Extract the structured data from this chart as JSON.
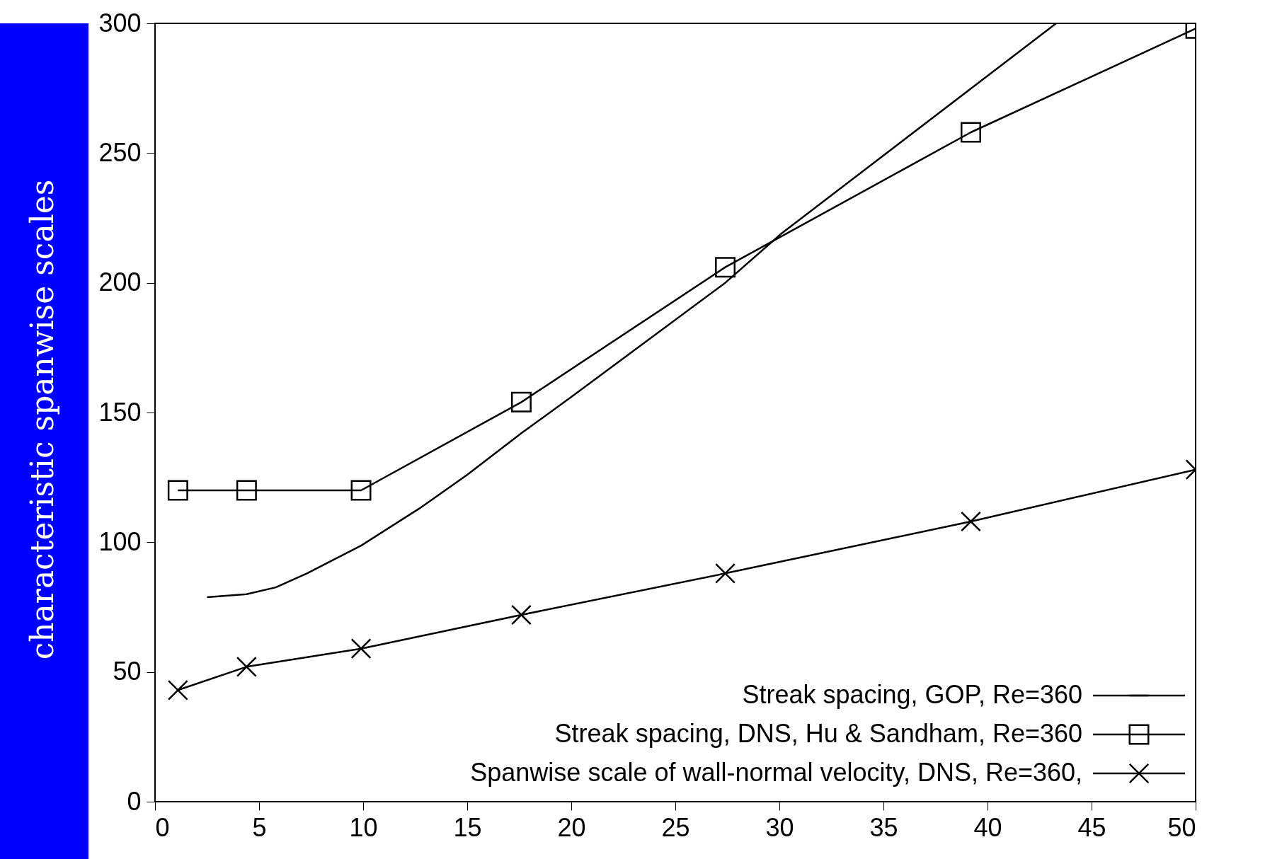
{
  "chart_data": {
    "type": "line",
    "ylabel": "characteristic spanwise scales",
    "xlim": [
      0,
      50
    ],
    "xticks": [
      0,
      5,
      10,
      15,
      20,
      25,
      30,
      35,
      40,
      45,
      50
    ],
    "ylim": [
      0,
      300
    ],
    "yticks": [
      0,
      50,
      100,
      150,
      200,
      250,
      300
    ],
    "grid": false,
    "legend": "bottom right",
    "series": [
      {
        "name": "Streak spacing, GOP, Re=360",
        "color": "#000000",
        "marker": "none",
        "x": [
          2.5,
          4.4,
          5.8,
          7.3,
          9.9,
          12.7,
          15,
          17.6,
          20,
          27.4,
          30.1,
          43.3
        ],
        "values": [
          78.8,
          80,
          82.6,
          88,
          98.7,
          113,
          126,
          142,
          156,
          200,
          219,
          300
        ]
      },
      {
        "name": "Streak spacing, DNS, Hu & Sandham, Re=360",
        "color": "#000000",
        "marker": "square",
        "x": [
          1.1,
          4.4,
          9.9,
          17.6,
          27.4,
          39.2,
          50
        ],
        "values": [
          120,
          120,
          120,
          154,
          206,
          258,
          298
        ]
      },
      {
        "name": "Spanwise scale of wall-normal velocity, DNS, Re=360,",
        "color": "#000000",
        "marker": "cross",
        "x": [
          1.1,
          4.4,
          9.9,
          17.6,
          27.4,
          39.2,
          50
        ],
        "values": [
          43,
          52,
          59,
          72,
          88,
          108,
          128
        ]
      }
    ]
  }
}
